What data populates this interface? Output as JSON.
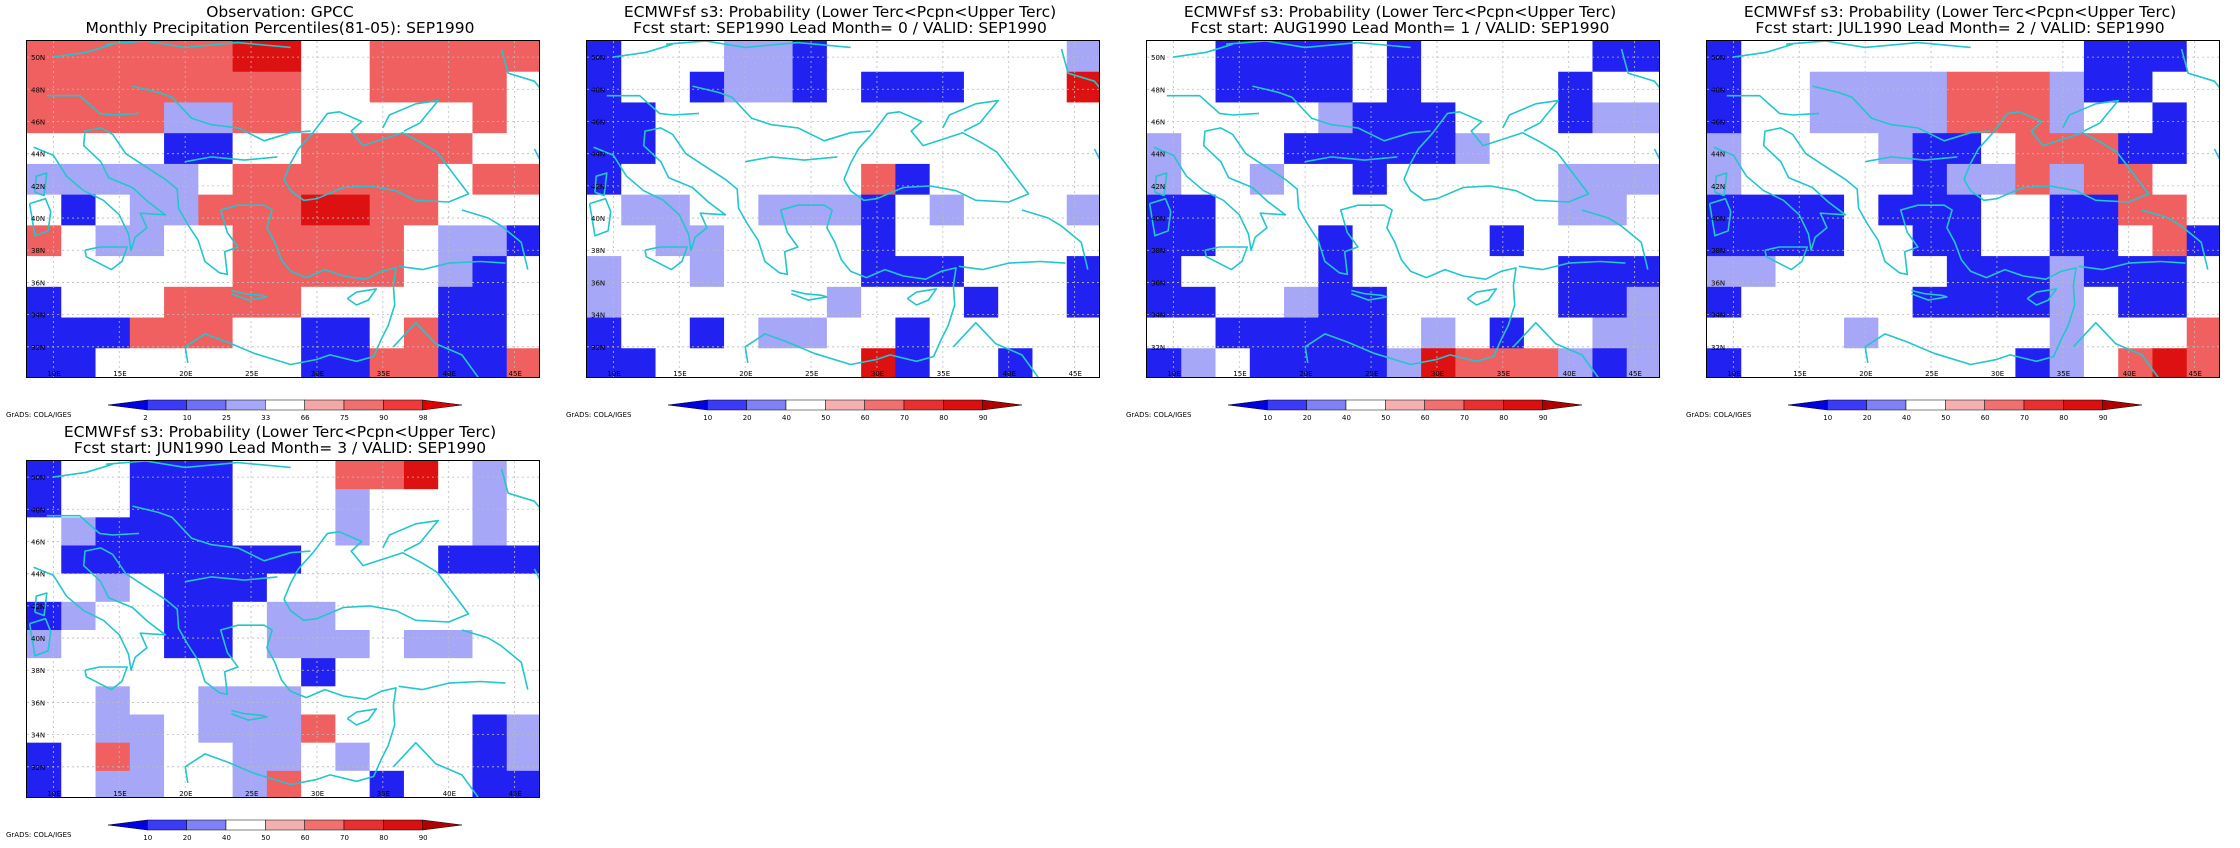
{
  "panels": [
    {
      "id": "obs",
      "title1": "Observation: GPCC",
      "title2": "Monthly Precipitation Percentiles(81-05): SEP1990",
      "credit": "",
      "cbar_type": "obs",
      "cbar_labels": [
        "2",
        "10",
        "25",
        "33",
        "66",
        "75",
        "90",
        "98"
      ],
      "grid": [
        "RRRRRRDDWWRRRRR",
        "RRRRRRRRWWRRRRW",
        "RRRRLLRRWWWWWRW",
        "WWWWBBWWRRRRRWW",
        "LLLLLWRRRRRRWRR",
        "WBWLLRRRDDRRWWW",
        "RWLLWWRRRRRWLLB",
        "WWWWWWRRRRRWLBW",
        "BWWWRRRRWWWWBBW",
        "BBBRRRWWBBWRBBW",
        "BBWWWWWWBBRRBBR"
      ]
    },
    {
      "id": "lead0",
      "title1": "ECMWFsf s3: Probability (Lower Terc<Pcpn<Upper Terc)",
      "title2": "Fcst start: SEP1990   Lead Month= 0 / VALID: SEP1990",
      "credit": "",
      "cbar_type": "prob",
      "cbar_labels": [
        "10",
        "20",
        "40",
        "50",
        "60",
        "70",
        "80",
        "90"
      ],
      "grid": [
        "BWWWLLBWWWWWWWL",
        "BWWBLLBWBBBWWWD",
        "BBWWWWWWWWWWWWW",
        "BBWWWWWWWWWWWWW",
        "BWWWWWWWRBWWWWW",
        "WLLWWLLLBWLWWWL",
        "WWLLWWWWBWWWWWW",
        "LWWLWWWWBBBWWWB",
        "LWWWWWWLWWWBWWB",
        "BWWBWLLWWBWWWWW",
        "BBWWWWWWDBWWBWW"
      ]
    },
    {
      "id": "lead1",
      "title1": "ECMWFsf s3: Probability (Lower Terc<Pcpn<Upper Terc)",
      "title2": "Fcst start: AUG1990   Lead Month= 1 / VALID: SEP1990",
      "credit": "",
      "cbar_type": "prob",
      "cbar_labels": [
        "10",
        "20",
        "40",
        "50",
        "60",
        "70",
        "80",
        "90"
      ],
      "grid": [
        "WWBBBBWBWWWWWBB",
        "WWBBBBWBWWWWBWW",
        "WWWWWLBBBWWWBLL",
        "LWWWBBBBBLWWWWW",
        "LWWLWWBWWWWWLLL",
        "BBWWWWWWWWWWLLW",
        "BBWWWBWWWWBWWWW",
        "BWWWWBWWWWWWBBB",
        "BBWWLBBWWWWWBBL",
        "WWBBBBBWLWBWWLL",
        "BLWBBBBLDRRRLBL"
      ]
    },
    {
      "id": "lead2",
      "title1": "ECMWFsf s3: Probability (Lower Terc<Pcpn<Upper Terc)",
      "title2": "Fcst start: JUL1990   Lead Month= 2 / VALID: SEP1990",
      "credit": "",
      "cbar_type": "prob",
      "cbar_labels": [
        "10",
        "20",
        "40",
        "50",
        "60",
        "70",
        "80",
        "90"
      ],
      "grid": [
        "BWWWWWWWWWWBBBW",
        "BWWLLLLRRRLBBWW",
        "BWWLLLLRRRLWWBW",
        "LWWWWLBBWRRRBBW",
        "LWWWWWBLLRLRRWW",
        "BBBBWBBBWWBBRRW",
        "BBBBWWBBWWBBWRB",
        "LLWWWWWBBBLBBBW",
        "BWWWWWBBBBLWBBW",
        "WWWWLWWWWWLWWWR",
        "BWWWWWWWWBLWRDR"
      ]
    },
    {
      "id": "lead3",
      "title1": "ECMWFsf s3: Probability (Lower Terc<Pcpn<Upper Terc)",
      "title2": "Fcst start: JUN1990   Lead Month= 3 / VALID: SEP1990",
      "credit": "",
      "cbar_type": "prob",
      "cbar_labels": [
        "10",
        "20",
        "40",
        "50",
        "60",
        "70",
        "80",
        "90"
      ],
      "grid": [
        "BWWBBBWWWRRDWLW",
        "BWWBBBWWWLWWWLW",
        "WLBBBBWWWLWWWLW",
        "WBBBBBBBWWWWBBB",
        "WWLWBBBWWWWWWWW",
        "BLWWBBWLLWWWWWW",
        "LWWWBBWLLLWLLWW",
        "WWWWWWWWBWWWWWW",
        "WWLWWLLLWWWWWWW",
        "WWLLWLLLRWWWWBL",
        "BWRLWWLLWLWWWBL",
        "BWLLWWLRWWBWWBB"
      ]
    }
  ],
  "palettes": {
    "W": "#ffffff",
    "B": "#2121f2",
    "L": "#a7a7f7",
    "P": "#f4a7a7",
    "R": "#f06060",
    "D": "#dd1111"
  },
  "cbar_colors": {
    "obs": [
      "#0000e0",
      "#3a3af7",
      "#6f6ff7",
      "#a7a7f7",
      "#ffffff",
      "#f4a7a7",
      "#f06f6f",
      "#f03a3a",
      "#e00000"
    ],
    "prob": [
      "#0000e0",
      "#3a3af7",
      "#8080f7",
      "#ffffff",
      "#f4b0b0",
      "#f07070",
      "#e83030",
      "#d81010",
      "#b00000"
    ]
  },
  "lon_labels": [
    "10E",
    "15E",
    "20E",
    "25E",
    "30E",
    "35E",
    "40E",
    "45E"
  ],
  "lat_labels": [
    "50N",
    "48N",
    "46N",
    "44N",
    "42N",
    "40N",
    "38N",
    "36N",
    "34N",
    "32N",
    "30N"
  ],
  "shared_credit": "GrADS: COLA/IGES"
}
